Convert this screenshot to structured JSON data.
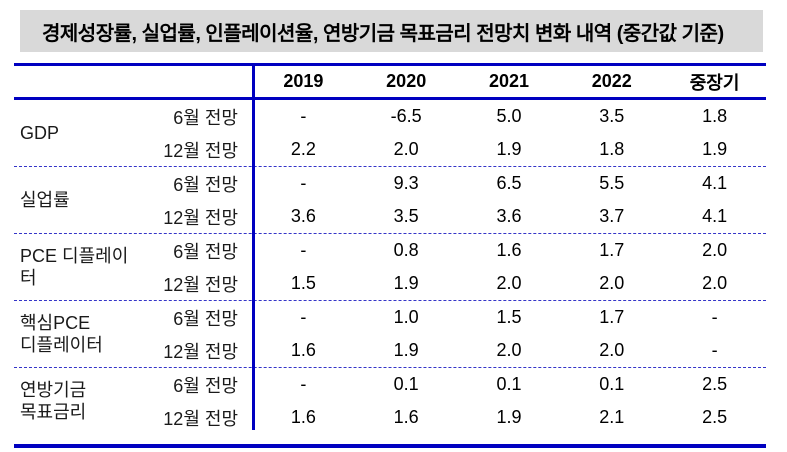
{
  "title": "경제성장률, 실업률, 인플레이션율, 연방기금 목표금리 전망치 변화 내역 (중간값 기준)",
  "colors": {
    "rule_blue": "#0000c0",
    "title_background": "#d9d9d9",
    "text": "#000000"
  },
  "table": {
    "columns": [
      "2019",
      "2020",
      "2021",
      "2022",
      "중장기"
    ],
    "row_labels": [
      "6월 전망",
      "12월 전망"
    ],
    "sections": [
      {
        "category": "GDP",
        "june": [
          "-",
          "-6.5",
          "5.0",
          "3.5",
          "1.8"
        ],
        "december": [
          "2.2",
          "2.0",
          "1.9",
          "1.8",
          "1.9"
        ]
      },
      {
        "category": "실업률",
        "june": [
          "-",
          "9.3",
          "6.5",
          "5.5",
          "4.1"
        ],
        "december": [
          "3.6",
          "3.5",
          "3.6",
          "3.7",
          "4.1"
        ]
      },
      {
        "category": "PCE 디플레이터",
        "june": [
          "-",
          "0.8",
          "1.6",
          "1.7",
          "2.0"
        ],
        "december": [
          "1.5",
          "1.9",
          "2.0",
          "2.0",
          "2.0"
        ]
      },
      {
        "category": "핵심PCE\n디플레이터",
        "june": [
          "-",
          "1.0",
          "1.5",
          "1.7",
          "-"
        ],
        "december": [
          "1.6",
          "1.9",
          "2.0",
          "2.0",
          "-"
        ]
      },
      {
        "category": "연방기금\n목표금리",
        "june": [
          "-",
          "0.1",
          "0.1",
          "0.1",
          "2.5"
        ],
        "december": [
          "1.6",
          "1.6",
          "1.9",
          "2.1",
          "2.5"
        ]
      }
    ]
  }
}
